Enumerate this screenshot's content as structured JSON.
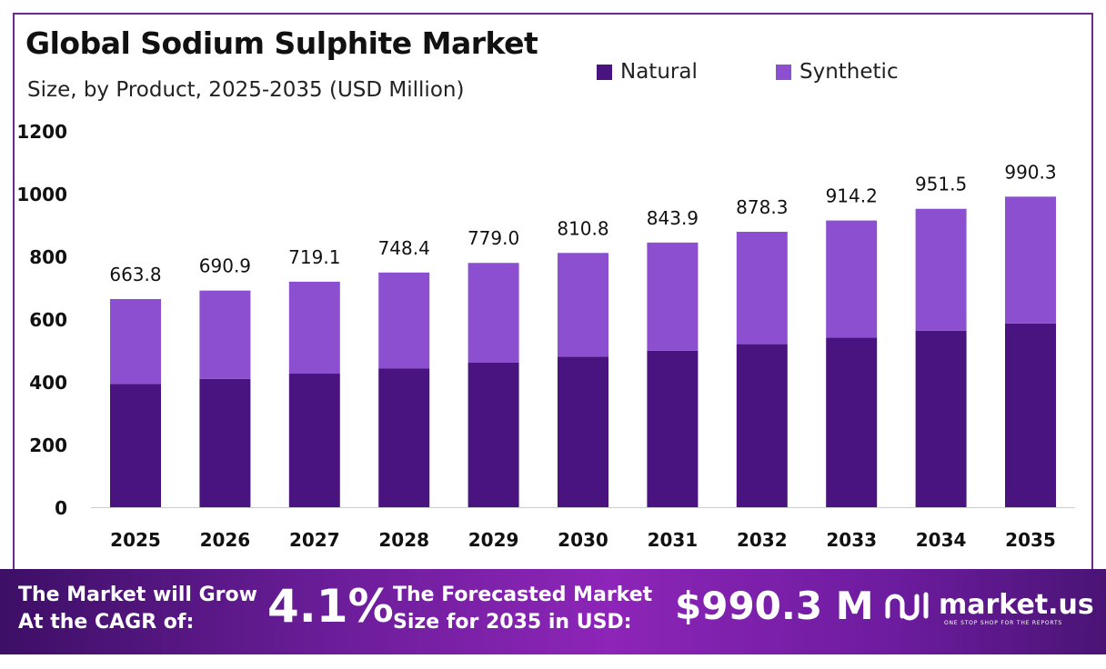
{
  "chart_data": {
    "type": "bar",
    "stacked": true,
    "title": "Global Sodium Sulphite Market",
    "subtitle": "Size, by Product, 2025-2035 (USD Million)",
    "categories": [
      "2025",
      "2026",
      "2027",
      "2028",
      "2029",
      "2030",
      "2031",
      "2032",
      "2033",
      "2034",
      "2035"
    ],
    "series": [
      {
        "name": "Natural",
        "color": "#4a1480",
        "values": [
          393,
          409,
          426,
          443,
          461,
          480,
          499,
          520,
          541,
          563,
          586
        ]
      },
      {
        "name": "Synthetic",
        "color": "#8b4fd0",
        "values": [
          270.8,
          281.9,
          293.1,
          305.4,
          318.0,
          330.8,
          344.9,
          358.3,
          373.2,
          388.5,
          404.3
        ]
      }
    ],
    "totals": [
      "663.8",
      "690.9",
      "719.1",
      "748.4",
      "779.0",
      "810.8",
      "843.9",
      "878.3",
      "914.2",
      "951.5",
      "990.3"
    ],
    "yticks": [
      "0",
      "200",
      "400",
      "600",
      "800",
      "1000",
      "1200"
    ],
    "ylim": [
      0,
      1200
    ],
    "grid": false,
    "legend_position": "top-right"
  },
  "banner": {
    "cagr_line1": "The Market will Grow",
    "cagr_line2": "At the CAGR of:",
    "cagr_value": "4.1%",
    "forecast_line1": "The Forecasted Market",
    "forecast_line2": "Size for 2035 in USD:",
    "forecast_value": "$990.3 M",
    "brand_name": "market.us",
    "brand_tagline": "ONE STOP SHOP FOR THE REPORTS"
  }
}
